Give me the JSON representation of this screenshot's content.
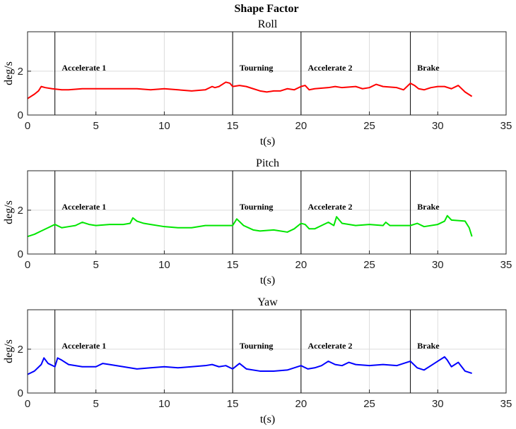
{
  "figure": {
    "title": "Shape Factor"
  },
  "chart_data": [
    {
      "type": "line",
      "title": "Roll",
      "xlabel": "t(s)",
      "ylabel": "deg/s",
      "xlim": [
        0,
        35
      ],
      "ylim": [
        0,
        3.8
      ],
      "xticks": [
        0,
        5,
        10,
        15,
        20,
        25,
        30,
        35
      ],
      "yticks": [
        0,
        2
      ],
      "grid": true,
      "color": "#ff0000",
      "phase_lines": [
        2,
        15,
        20,
        28
      ],
      "annotations": [
        {
          "text": "Accelerate 1",
          "x": 2.5,
          "y": 2.0
        },
        {
          "text": "Tourning",
          "x": 15.5,
          "y": 2.0
        },
        {
          "text": "Accelerate 2",
          "x": 20.5,
          "y": 2.0
        },
        {
          "text": "Brake",
          "x": 28.5,
          "y": 2.0
        }
      ],
      "series": [
        {
          "x": [
            0,
            0.5,
            0.8,
            1.0,
            1.3,
            1.8,
            2.5,
            3,
            4,
            5,
            6,
            7,
            8,
            9,
            10,
            11,
            12,
            13,
            13.5,
            13.7,
            14,
            14.5,
            14.8,
            15,
            15.5,
            16,
            16.5,
            17,
            17.5,
            18,
            18.5,
            19,
            19.5,
            20,
            20.3,
            20.6,
            21,
            22,
            22.5,
            23,
            24,
            24.5,
            25,
            25.5,
            26,
            27,
            27.5,
            28,
            28.3,
            28.6,
            29,
            29.5,
            30,
            30.5,
            31,
            31.5,
            32,
            32.5
          ],
          "y": [
            0.75,
            0.95,
            1.1,
            1.3,
            1.25,
            1.2,
            1.15,
            1.15,
            1.2,
            1.2,
            1.2,
            1.2,
            1.2,
            1.15,
            1.2,
            1.15,
            1.1,
            1.15,
            1.3,
            1.25,
            1.3,
            1.5,
            1.45,
            1.3,
            1.35,
            1.3,
            1.2,
            1.1,
            1.05,
            1.1,
            1.1,
            1.2,
            1.15,
            1.3,
            1.35,
            1.15,
            1.2,
            1.25,
            1.3,
            1.25,
            1.3,
            1.2,
            1.25,
            1.4,
            1.3,
            1.25,
            1.15,
            1.45,
            1.35,
            1.2,
            1.15,
            1.25,
            1.3,
            1.3,
            1.2,
            1.35,
            1.05,
            0.85
          ]
        }
      ]
    },
    {
      "type": "line",
      "title": "Pitch",
      "xlabel": "t(s)",
      "ylabel": "deg/s",
      "xlim": [
        0,
        35
      ],
      "ylim": [
        0,
        3.8
      ],
      "xticks": [
        0,
        5,
        10,
        15,
        20,
        25,
        30,
        35
      ],
      "yticks": [
        0,
        2
      ],
      "grid": true,
      "color": "#00e600",
      "phase_lines": [
        2,
        15,
        20,
        28
      ],
      "annotations": [
        {
          "text": "Accelerate 1",
          "x": 2.5,
          "y": 2.0
        },
        {
          "text": "Tourning",
          "x": 15.5,
          "y": 2.0
        },
        {
          "text": "Accelerate 2",
          "x": 20.5,
          "y": 2.0
        },
        {
          "text": "Brake",
          "x": 28.5,
          "y": 2.0
        }
      ],
      "series": [
        {
          "x": [
            0,
            0.5,
            1.0,
            1.5,
            2.0,
            2.5,
            3,
            3.5,
            4,
            4.5,
            5,
            6,
            7,
            7.5,
            7.7,
            8,
            8.5,
            9,
            10,
            11,
            12,
            13,
            14,
            15,
            15.3,
            15.8,
            16.5,
            17,
            18,
            19,
            19.5,
            20,
            20.3,
            20.6,
            21,
            21.5,
            22,
            22.4,
            22.6,
            23,
            24,
            25,
            26,
            26.2,
            26.5,
            27,
            28,
            28.5,
            29,
            30,
            30.5,
            30.7,
            31,
            32,
            32.3,
            32.5
          ],
          "y": [
            0.8,
            0.9,
            1.05,
            1.2,
            1.35,
            1.2,
            1.25,
            1.3,
            1.45,
            1.35,
            1.3,
            1.35,
            1.35,
            1.4,
            1.65,
            1.5,
            1.4,
            1.35,
            1.25,
            1.2,
            1.2,
            1.3,
            1.3,
            1.3,
            1.6,
            1.3,
            1.1,
            1.05,
            1.1,
            1.0,
            1.15,
            1.4,
            1.35,
            1.15,
            1.15,
            1.3,
            1.45,
            1.3,
            1.7,
            1.4,
            1.3,
            1.35,
            1.3,
            1.45,
            1.3,
            1.3,
            1.3,
            1.4,
            1.25,
            1.35,
            1.5,
            1.75,
            1.55,
            1.5,
            1.2,
            0.8
          ]
        }
      ]
    },
    {
      "type": "line",
      "title": "Yaw",
      "xlabel": "t(s)",
      "ylabel": "deg/s",
      "xlim": [
        0,
        35
      ],
      "ylim": [
        0,
        3.8
      ],
      "xticks": [
        0,
        5,
        10,
        15,
        20,
        25,
        30,
        35
      ],
      "yticks": [
        0,
        2
      ],
      "grid": true,
      "color": "#0000ff",
      "phase_lines": [
        2,
        15,
        20,
        28
      ],
      "annotations": [
        {
          "text": "Accelerate 1",
          "x": 2.5,
          "y": 2.0
        },
        {
          "text": "Tourning",
          "x": 15.5,
          "y": 2.0
        },
        {
          "text": "Accelerate 2",
          "x": 20.5,
          "y": 2.0
        },
        {
          "text": "Brake",
          "x": 28.5,
          "y": 2.0
        }
      ],
      "series": [
        {
          "x": [
            0,
            0.5,
            1.0,
            1.2,
            1.5,
            2.0,
            2.2,
            2.5,
            3,
            4,
            5,
            5.5,
            6,
            7,
            8,
            9,
            10,
            11,
            12,
            13,
            13.5,
            14,
            14.5,
            15,
            15.5,
            16,
            17,
            18,
            19,
            19.5,
            20,
            20.5,
            21,
            21.5,
            22,
            22.5,
            23,
            23.5,
            24,
            25,
            26,
            27,
            27.5,
            28,
            28.5,
            29,
            29.5,
            30,
            30.5,
            30.7,
            31,
            31.5,
            32,
            32.5
          ],
          "y": [
            0.85,
            1.0,
            1.3,
            1.6,
            1.35,
            1.2,
            1.6,
            1.5,
            1.3,
            1.2,
            1.2,
            1.35,
            1.3,
            1.2,
            1.1,
            1.15,
            1.2,
            1.15,
            1.2,
            1.25,
            1.3,
            1.2,
            1.25,
            1.1,
            1.35,
            1.1,
            1.0,
            1.0,
            1.05,
            1.15,
            1.25,
            1.1,
            1.15,
            1.25,
            1.45,
            1.3,
            1.25,
            1.4,
            1.3,
            1.25,
            1.3,
            1.25,
            1.35,
            1.45,
            1.15,
            1.05,
            1.25,
            1.45,
            1.65,
            1.5,
            1.2,
            1.4,
            1.0,
            0.9
          ]
        }
      ]
    }
  ]
}
